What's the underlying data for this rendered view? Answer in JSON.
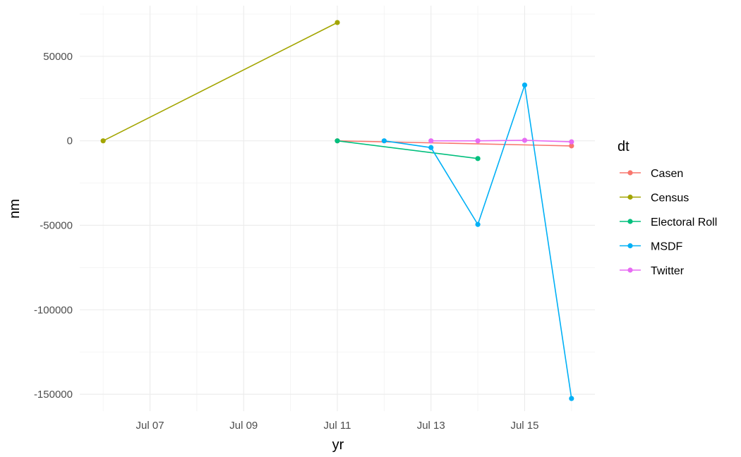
{
  "chart_data": {
    "type": "line",
    "xlabel": "yr",
    "ylabel": "nm",
    "x_type": "date",
    "xlim": [
      "2023-07-05",
      "2023-07-16"
    ],
    "ylim": [
      -160000,
      80000
    ],
    "x_ticks": [
      {
        "date": "2023-07-07",
        "label": "Jul 07"
      },
      {
        "date": "2023-07-09",
        "label": "Jul 09"
      },
      {
        "date": "2023-07-11",
        "label": "Jul 11"
      },
      {
        "date": "2023-07-13",
        "label": "Jul 13"
      },
      {
        "date": "2023-07-15",
        "label": "Jul 15"
      }
    ],
    "y_ticks": [
      {
        "value": 50000,
        "label": "50000"
      },
      {
        "value": 0,
        "label": "0"
      },
      {
        "value": -50000,
        "label": "-50000"
      },
      {
        "value": -100000,
        "label": "-100000"
      },
      {
        "value": -150000,
        "label": "-150000"
      }
    ],
    "grid": true,
    "legend": {
      "title": "dt",
      "position": "right"
    },
    "series": [
      {
        "name": "Casen",
        "color": "#F8766D",
        "points": [
          {
            "x": "2023-07-11",
            "y": 0
          },
          {
            "x": "2023-07-16",
            "y": -3000
          }
        ]
      },
      {
        "name": "Census",
        "color": "#A3A500",
        "points": [
          {
            "x": "2023-07-06",
            "y": 0
          },
          {
            "x": "2023-07-11",
            "y": 70000
          }
        ]
      },
      {
        "name": "Electoral Roll",
        "color": "#00BF7D",
        "points": [
          {
            "x": "2023-07-11",
            "y": 0
          },
          {
            "x": "2023-07-14",
            "y": -10500
          }
        ]
      },
      {
        "name": "MSDF",
        "color": "#00B0F6",
        "points": [
          {
            "x": "2023-07-12",
            "y": 0
          },
          {
            "x": "2023-07-13",
            "y": -4000
          },
          {
            "x": "2023-07-14",
            "y": -49500
          },
          {
            "x": "2023-07-15",
            "y": 33000
          },
          {
            "x": "2023-07-16",
            "y": -152500
          }
        ]
      },
      {
        "name": "Twitter",
        "color": "#E76BF3",
        "points": [
          {
            "x": "2023-07-13",
            "y": 0
          },
          {
            "x": "2023-07-14",
            "y": 0
          },
          {
            "x": "2023-07-15",
            "y": 300
          },
          {
            "x": "2023-07-16",
            "y": -600
          }
        ]
      }
    ]
  }
}
